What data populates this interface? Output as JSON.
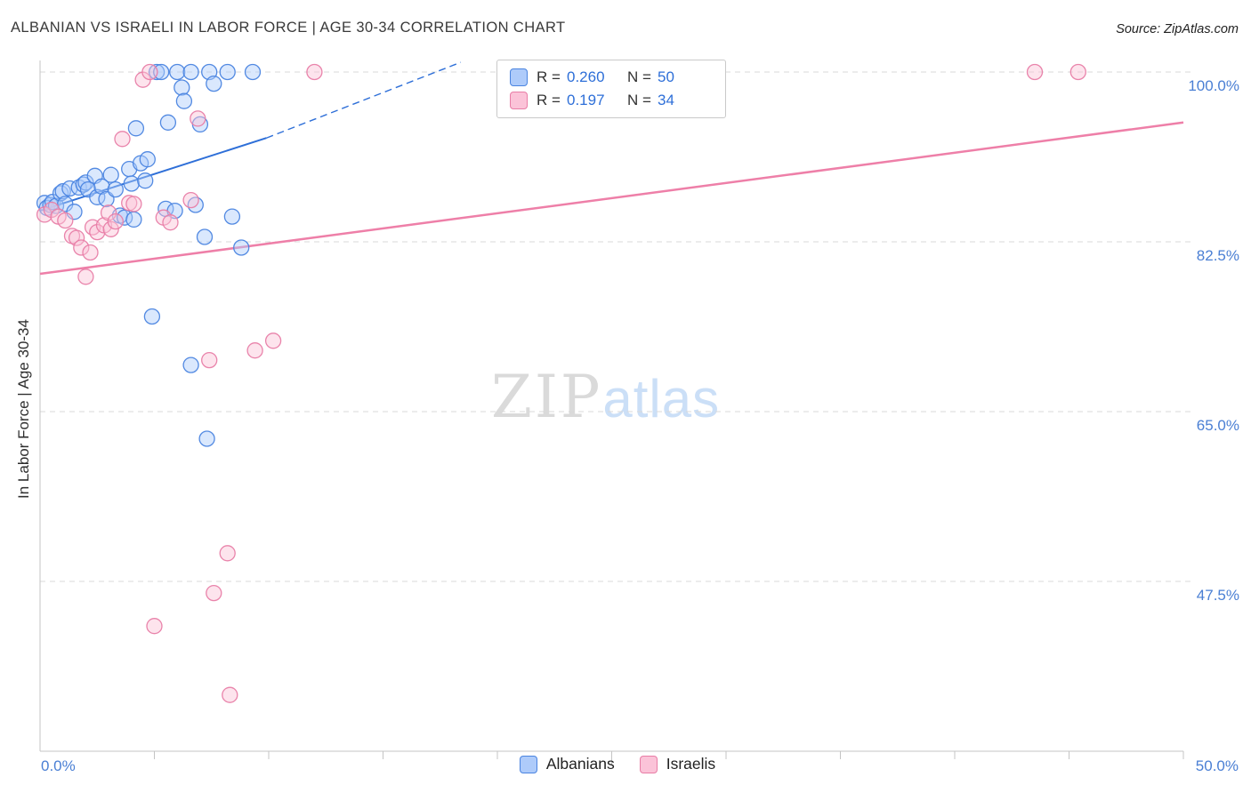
{
  "header": {
    "title": "ALBANIAN VS ISRAELI IN LABOR FORCE | AGE 30-34 CORRELATION CHART",
    "source": "Source: ZipAtlas.com"
  },
  "watermark": {
    "part1": "ZIP",
    "part2": "atlas"
  },
  "axes": {
    "y_label": "In Labor Force | Age 30-34",
    "y_ticks": [
      {
        "value": 100,
        "label": "100.0%"
      },
      {
        "value": 82.5,
        "label": "82.5%"
      },
      {
        "value": 65,
        "label": "65.0%"
      },
      {
        "value": 47.5,
        "label": "47.5%"
      }
    ],
    "x_min_label": "0.0%",
    "x_max_label": "50.0%"
  },
  "legend_box": {
    "r_label": "R =",
    "n_label": "N =",
    "rows": [
      {
        "r": "0.260",
        "n": "50"
      },
      {
        "r": "0.197",
        "n": "34"
      }
    ]
  },
  "chart_data": {
    "type": "scatter",
    "title": "ALBANIAN VS ISRAELI IN LABOR FORCE | AGE 30-34 CORRELATION CHART",
    "xlabel": "",
    "ylabel": "In Labor Force | Age 30-34",
    "xlim": [
      0,
      50
    ],
    "ylim": [
      30,
      101
    ],
    "x_units": "percent",
    "y_units": "percent",
    "grid": "horizontal-dashed",
    "y_gridlines": [
      100,
      82.5,
      65,
      47.5
    ],
    "x_tick_step": 5,
    "legend_position": "bottom-center",
    "series": [
      {
        "name": "Albanians",
        "R": 0.26,
        "N": 50,
        "fill": "#aecbfa",
        "stroke": "#4a84e0",
        "line_color": "#2e6fd8",
        "line_width": 2,
        "trend_solid": [
          [
            0,
            85.7
          ],
          [
            9.9,
            93.2
          ]
        ],
        "trend_dashed": [
          [
            9.9,
            93.2
          ],
          [
            18.4,
            101.0
          ]
        ],
        "points": [
          [
            0.2,
            86.5
          ],
          [
            0.3,
            86.0
          ],
          [
            0.45,
            86.3
          ],
          [
            0.55,
            86.6
          ],
          [
            0.7,
            86.2
          ],
          [
            0.9,
            87.5
          ],
          [
            1.0,
            87.7
          ],
          [
            1.1,
            86.4
          ],
          [
            1.3,
            88.0
          ],
          [
            1.5,
            85.6
          ],
          [
            1.7,
            88.1
          ],
          [
            1.9,
            88.4
          ],
          [
            2.0,
            88.6
          ],
          [
            2.1,
            87.9
          ],
          [
            2.4,
            89.3
          ],
          [
            2.5,
            87.1
          ],
          [
            2.7,
            88.2
          ],
          [
            2.9,
            86.9
          ],
          [
            3.1,
            89.4
          ],
          [
            3.3,
            87.9
          ],
          [
            3.5,
            85.2
          ],
          [
            3.7,
            85.0
          ],
          [
            3.9,
            90.0
          ],
          [
            4.0,
            88.5
          ],
          [
            4.1,
            84.8
          ],
          [
            4.2,
            94.2
          ],
          [
            4.4,
            90.6
          ],
          [
            4.6,
            88.8
          ],
          [
            4.7,
            91.0
          ],
          [
            4.9,
            74.8
          ],
          [
            5.1,
            100.0
          ],
          [
            5.3,
            100.0
          ],
          [
            5.5,
            85.9
          ],
          [
            5.6,
            94.8
          ],
          [
            5.9,
            85.7
          ],
          [
            6.0,
            100.0
          ],
          [
            6.2,
            98.4
          ],
          [
            6.3,
            97.0
          ],
          [
            6.6,
            100.0
          ],
          [
            6.6,
            69.8
          ],
          [
            6.8,
            86.3
          ],
          [
            7.0,
            94.6
          ],
          [
            7.2,
            83.0
          ],
          [
            7.3,
            62.2
          ],
          [
            7.4,
            100.0
          ],
          [
            7.6,
            98.8
          ],
          [
            8.2,
            100.0
          ],
          [
            8.4,
            85.1
          ],
          [
            8.8,
            81.9
          ],
          [
            9.3,
            100.0
          ]
        ]
      },
      {
        "name": "Israelis",
        "R": 0.197,
        "N": 34,
        "fill": "#fbc3d8",
        "stroke": "#e87da6",
        "line_color": "#ee7fa8",
        "line_width": 2.5,
        "trend_solid": [
          [
            0,
            79.2
          ],
          [
            50,
            94.8
          ]
        ],
        "points": [
          [
            0.2,
            85.3
          ],
          [
            0.5,
            85.8
          ],
          [
            0.8,
            85.1
          ],
          [
            1.1,
            84.7
          ],
          [
            1.4,
            83.1
          ],
          [
            1.6,
            82.9
          ],
          [
            1.8,
            81.9
          ],
          [
            2.0,
            78.9
          ],
          [
            2.2,
            81.4
          ],
          [
            2.3,
            84.0
          ],
          [
            2.5,
            83.5
          ],
          [
            2.8,
            84.2
          ],
          [
            3.0,
            85.5
          ],
          [
            3.1,
            83.8
          ],
          [
            3.3,
            84.6
          ],
          [
            3.6,
            93.1
          ],
          [
            3.9,
            86.5
          ],
          [
            4.1,
            86.4
          ],
          [
            4.5,
            99.2
          ],
          [
            4.8,
            100.0
          ],
          [
            5.0,
            42.9
          ],
          [
            5.4,
            85.0
          ],
          [
            5.7,
            84.5
          ],
          [
            6.6,
            86.8
          ],
          [
            6.9,
            95.2
          ],
          [
            7.4,
            70.3
          ],
          [
            7.6,
            46.3
          ],
          [
            8.2,
            50.4
          ],
          [
            8.3,
            35.8
          ],
          [
            9.4,
            71.3
          ],
          [
            10.2,
            72.3
          ],
          [
            12.0,
            100.0
          ],
          [
            43.5,
            100.0
          ],
          [
            45.4,
            100.0
          ]
        ]
      }
    ]
  }
}
